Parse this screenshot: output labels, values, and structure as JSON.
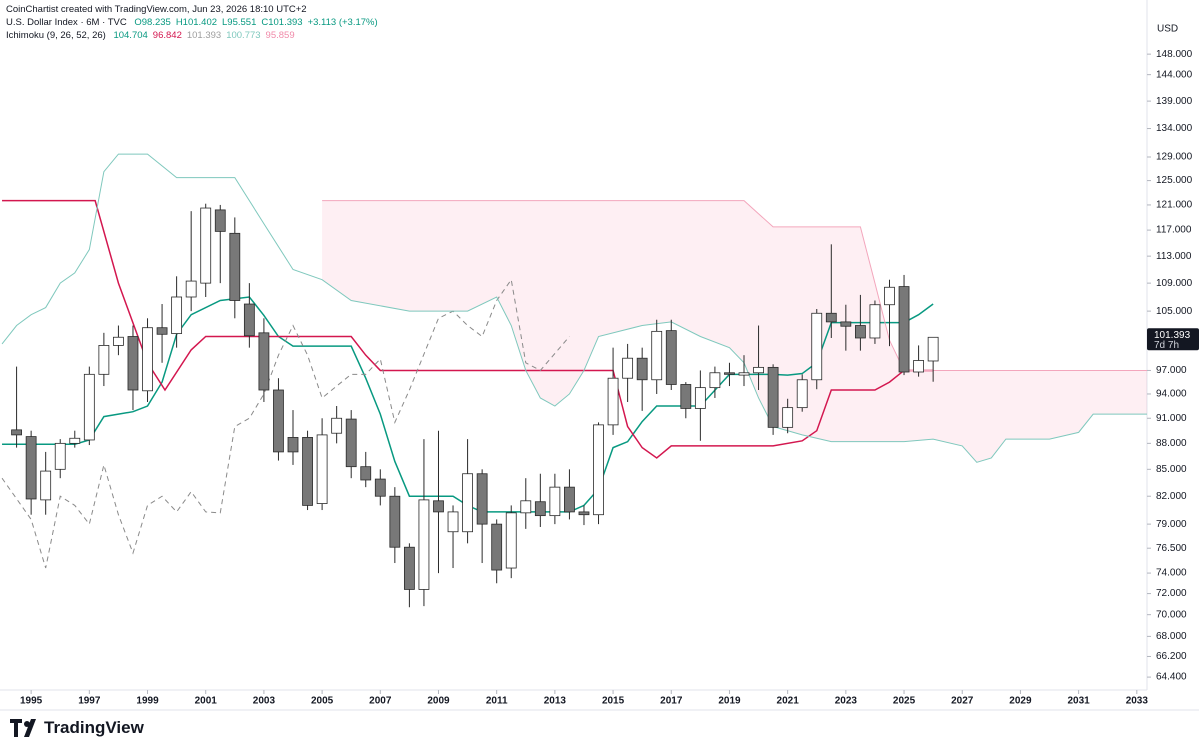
{
  "header": {
    "credit": "CoinChartist created with TradingView.com, Jun 23, 2026 18:10 UTC+2"
  },
  "footer": {
    "brand": "TradingView"
  },
  "chart_data": {
    "type": "candlestick",
    "symbol": "U.S. Dollar Index · 6M · TVC",
    "ohlc_labels": [
      "O98.235",
      "H101.402",
      "L95.551",
      "C101.393"
    ],
    "change": "+3.113 (+3.17%)",
    "indicator": "Ichimoku (9, 26, 52, 26)",
    "indicator_values": [
      {
        "value": 104.704,
        "color": "#089981"
      },
      {
        "value": 96.842,
        "color": "#d3174f"
      },
      {
        "value": 101.393,
        "color": "#9e9e9e"
      },
      {
        "value": 100.773,
        "color": "#7fc8bd"
      },
      {
        "value": 95.859,
        "color": "#f08aa9"
      }
    ],
    "currency": "USD",
    "log_scale": true,
    "up_color": "#ffffff",
    "down_color": "#787878",
    "outline_color": "#2a2a2a",
    "x": [
      1994.5,
      1995,
      1995.5,
      1996,
      1996.5,
      1997,
      1997.5,
      1998,
      1998.5,
      1999,
      1999.5,
      2000,
      2000.5,
      2001,
      2001.5,
      2002,
      2002.5,
      2003,
      2003.5,
      2004,
      2004.5,
      2005,
      2005.5,
      2006,
      2006.5,
      2007,
      2007.5,
      2008,
      2008.5,
      2009,
      2009.5,
      2010,
      2010.5,
      2011,
      2011.5,
      2012,
      2012.5,
      2013,
      2013.5,
      2014,
      2014.5,
      2015,
      2015.5,
      2016,
      2016.5,
      2017,
      2017.5,
      2018,
      2018.5,
      2019,
      2019.5,
      2020,
      2020.5,
      2021,
      2021.5,
      2022,
      2022.5,
      2023,
      2023.5,
      2024,
      2024.5,
      2025,
      2025.5,
      2026
    ],
    "open": [
      89.6,
      88.8,
      81.6,
      85,
      88,
      88.4,
      96.5,
      100.3,
      101.5,
      94.4,
      102.7,
      101.9,
      107,
      109,
      120.2,
      116.5,
      106,
      102,
      94.5,
      88.7,
      88.7,
      81.2,
      89.2,
      90.9,
      85.3,
      83.9,
      82,
      76.6,
      72.4,
      81.5,
      78.2,
      78.2,
      84.5,
      79,
      74.5,
      80.2,
      81.4,
      79.9,
      83,
      80.3,
      80,
      90.2,
      96,
      98.6,
      95.8,
      102.3,
      95.2,
      92.2,
      94.8,
      96.7,
      96.4,
      96.7,
      97.4,
      89.9,
      92.3,
      95.8,
      104.7,
      103.5,
      103,
      101.3,
      105.9,
      108.5,
      96.8,
      98.235
    ],
    "high": [
      97.5,
      89.5,
      87,
      88.5,
      89.5,
      97.5,
      102,
      103,
      103,
      104,
      106,
      110,
      120,
      121.2,
      121,
      119,
      109,
      104,
      96,
      92,
      89.5,
      91,
      92.5,
      92,
      87,
      85,
      83,
      77,
      88.5,
      89.5,
      81,
      88.5,
      85,
      79.5,
      81,
      84,
      84.5,
      84.5,
      85,
      81,
      90.5,
      100,
      100.5,
      100,
      103.8,
      103.8,
      95.5,
      97,
      97.5,
      98,
      99,
      103,
      97.8,
      93.4,
      96.5,
      105.3,
      114.8,
      105.9,
      107.3,
      106.5,
      109.5,
      110.2,
      100.3,
      101.402
    ],
    "low": [
      87.5,
      80,
      80,
      84,
      87.5,
      87.8,
      95,
      99,
      92,
      93,
      98,
      100,
      105,
      107,
      109,
      104,
      100,
      93,
      86,
      85.5,
      80.5,
      80.5,
      88,
      84,
      83,
      81,
      75,
      70.7,
      70.8,
      74,
      74.5,
      77,
      75,
      73,
      73.5,
      78.5,
      78.7,
      79,
      79.5,
      78.9,
      79,
      89,
      93,
      91.9,
      94,
      94.5,
      91,
      88.3,
      93.5,
      95,
      95,
      94.5,
      89,
      89.2,
      91.8,
      94.6,
      101.3,
      99.6,
      99.6,
      100.5,
      100.2,
      96.4,
      96.2,
      95.551
    ],
    "close": [
      89,
      81.7,
      84.8,
      88,
      88.6,
      96.5,
      100.3,
      101.4,
      94.5,
      102.7,
      101.8,
      107,
      109.3,
      120.5,
      116.8,
      106.5,
      101.6,
      94.5,
      87,
      87,
      81,
      89,
      91,
      85.3,
      83.8,
      82,
      76.6,
      72.4,
      81.6,
      80.3,
      80.3,
      84.5,
      79,
      74.3,
      80.2,
      81.5,
      79.9,
      83,
      80.3,
      80,
      90.2,
      96,
      98.6,
      95.8,
      102.2,
      95.2,
      92.2,
      94.8,
      96.7,
      96.5,
      96.7,
      97.4,
      89.9,
      92.3,
      95.8,
      104.7,
      103.5,
      102.9,
      101.3,
      105.9,
      108.4,
      96.8,
      98.3,
      101.393
    ],
    "lines": [
      {
        "color": "#089981",
        "x": [
          1994,
          1996.5,
          1997,
          1997.5,
          1998.5,
          1999,
          1999.5,
          2000,
          2000.5,
          2001.5,
          2002.5,
          2003,
          2003.5,
          2004,
          2006,
          2006.5,
          2007,
          2007.5,
          2008,
          2009.5,
          2010,
          2010.5,
          2013.5,
          2014,
          2014.5,
          2015,
          2015.5,
          2016,
          2016.5,
          2018,
          2019,
          2020.5,
          2021,
          2021.5,
          2022,
          2022.5,
          2025,
          2025.5,
          2026
        ],
        "values": [
          87.9,
          87.9,
          88.4,
          91.2,
          91.8,
          92.5,
          95.5,
          101.8,
          104.5,
          106.5,
          107,
          104.4,
          101.5,
          100.2,
          100.2,
          96,
          91.5,
          85.9,
          82,
          82,
          81,
          80.3,
          80.3,
          81,
          82.8,
          87.5,
          88.2,
          90.6,
          92.5,
          92.5,
          96.5,
          96.5,
          96.4,
          96.6,
          98,
          103.4,
          103.4,
          104.5,
          106
        ]
      },
      {
        "color": "#d3174f",
        "x": [
          1994,
          1997.2,
          1998,
          1999,
          1999.6,
          2000.5,
          2001,
          2006,
          2006.5,
          2007,
          2015,
          2015.5,
          2016,
          2016.5,
          2017,
          2020.5,
          2021.5,
          2022,
          2022.5,
          2024,
          2024.5,
          2025,
          2026
        ],
        "values": [
          121.7,
          121.7,
          109,
          98,
          94.5,
          99.7,
          101.5,
          101.5,
          99,
          97,
          97,
          90,
          87.5,
          86.3,
          87.7,
          87.7,
          88.3,
          89.5,
          94.5,
          94.5,
          95.5,
          97,
          97
        ]
      },
      {
        "color": "#8a8a8a",
        "dashed": true,
        "x": [
          1994,
          1995,
          1995.5,
          1996,
          1996.5,
          1997,
          1997.5,
          1998,
          1998.5,
          1999,
          1999.5,
          2000,
          2000.5,
          2001,
          2001.5,
          2002,
          2002.5,
          2003,
          2003.5,
          2004,
          2004.5,
          2005,
          2005.5,
          2006,
          2006.5,
          2007,
          2007.5,
          2008,
          2009,
          2009.5,
          2010,
          2010.5,
          2011,
          2011.5,
          2012,
          2012.5,
          2013.5
        ],
        "values": [
          84,
          79.5,
          74.5,
          82,
          81,
          79,
          85.5,
          80,
          76,
          81,
          82,
          80.3,
          82.5,
          80.3,
          80.2,
          90,
          91,
          94,
          99,
          103,
          99,
          93.5,
          95,
          96.5,
          96.5,
          98.5,
          90.5,
          94.5,
          104,
          105,
          103,
          101.5,
          106.5,
          109.5,
          98,
          97,
          101.5
        ]
      },
      {
        "color": "#7fc8bd",
        "x": [
          1994,
          1994.5,
          1995,
          1995.5,
          1996,
          1996.5,
          1997,
          1997.5,
          1998,
          1999,
          2000,
          2002,
          2003,
          2004,
          2005,
          2006,
          2008,
          2010,
          2011,
          2011.5,
          2012,
          2012.5,
          2013,
          2013.5,
          2014,
          2014.5,
          2016,
          2017,
          2018,
          2019,
          2019.5,
          2020,
          2020.5,
          2021.5,
          2022.5,
          2025,
          2026,
          2027,
          2027.5,
          2028,
          2028.5,
          2030,
          2031,
          2031.5,
          2033.35
        ],
        "values": [
          100.5,
          103,
          104.5,
          105.5,
          109,
          110.5,
          114,
          126.5,
          129.5,
          129.5,
          125.5,
          125.5,
          118,
          111,
          109.5,
          106.5,
          105,
          105,
          107,
          103,
          97,
          93.5,
          92.5,
          94,
          97,
          101.5,
          103,
          103.5,
          101.5,
          100,
          98,
          93.5,
          90,
          89,
          88.2,
          88.2,
          88.5,
          87.7,
          85.8,
          86.3,
          88.5,
          88.5,
          89.3,
          91.5,
          91.5
        ]
      },
      {
        "color": "#f3a6bc",
        "x": [
          2005,
          2019.5,
          2020.5,
          2023.5,
          2024,
          2024.5,
          2025,
          2033.35
        ],
        "values": [
          121.7,
          121.7,
          117.5,
          117.5,
          109,
          101,
          97,
          97
        ]
      }
    ],
    "cloud_color": "rgba(242,54,104,0.08)",
    "last": {
      "value": 101.393,
      "countdown": "7d 7h",
      "color": "#131722"
    },
    "xlim": [
      1993.93,
      2033.35
    ],
    "ylim": [
      63.3,
      159.1
    ],
    "xticks": [
      1995,
      1997,
      1999,
      2001,
      2003,
      2005,
      2007,
      2009,
      2011,
      2013,
      2015,
      2017,
      2019,
      2021,
      2023,
      2025,
      2027,
      2029,
      2031,
      2033
    ],
    "yticks": [
      {
        "value": 64.4,
        "label": "64.400"
      },
      {
        "value": 66.2,
        "label": "66.200"
      },
      {
        "value": 68,
        "label": "68.000"
      },
      {
        "value": 70,
        "label": "70.000"
      },
      {
        "value": 72,
        "label": "72.000"
      },
      {
        "value": 74,
        "label": "74.000"
      },
      {
        "value": 76.5,
        "label": "76.500"
      },
      {
        "value": 79,
        "label": "79.000"
      },
      {
        "value": 82,
        "label": "82.000"
      },
      {
        "value": 85,
        "label": "85.000"
      },
      {
        "value": 88,
        "label": "88.000"
      },
      {
        "value": 91,
        "label": "91.000"
      },
      {
        "value": 94,
        "label": "94.000"
      },
      {
        "value": 97,
        "label": "97.000"
      },
      {
        "value": 101,
        "label": "101.000"
      },
      {
        "value": 105,
        "label": "105.000"
      },
      {
        "value": 109,
        "label": "109.000"
      },
      {
        "value": 113,
        "label": "113.000"
      },
      {
        "value": 117,
        "label": "117.000"
      },
      {
        "value": 121,
        "label": "121.000"
      },
      {
        "value": 125,
        "label": "125.000"
      },
      {
        "value": 129,
        "label": "129.000"
      },
      {
        "value": 134,
        "label": "134.000"
      },
      {
        "value": 139,
        "label": "139.000"
      },
      {
        "value": 144,
        "label": "144.000"
      },
      {
        "value": 148,
        "label": "148.000"
      }
    ]
  }
}
